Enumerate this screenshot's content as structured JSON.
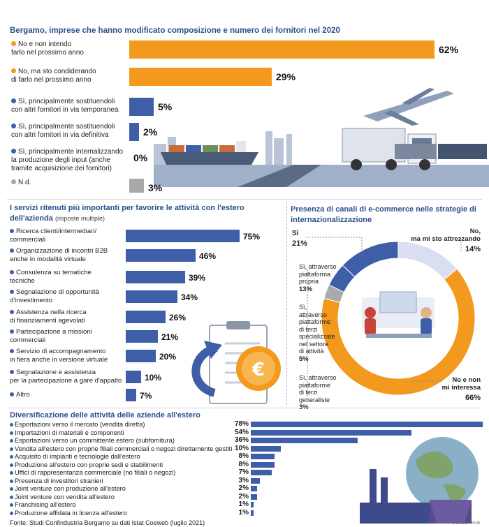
{
  "colors": {
    "orange": "#f39a1e",
    "blue": "#3f5ea8",
    "grey": "#a9a9a9",
    "title_blue": "#2b4f8f",
    "pale": "#d9dff0"
  },
  "chart_data": [
    {
      "type": "bar",
      "title": "Bergamo, imprese che hanno modificato composizione e numero dei fornitori nel 2020",
      "categories": [
        "No e non intendo farlo nel prossimo anno",
        "No, ma sto condiderando di farlo nel prossimo anno",
        "Sì, principalmente sostituendoli con altri fornitori in via temporanea",
        "Sì, principalmente sostituendoli con altri fornitori in via definitiva",
        "Sì, principalmente internalizzando la produzione degli input (anche tramite acquisizione dei fornitori)",
        "N.d."
      ],
      "label_lines": [
        [
          "No e non intendo",
          "farlo nel prossimo anno"
        ],
        [
          "No, ma sto condiderando",
          "di farlo nel prossimo anno"
        ],
        [
          "Sì, principalmente sostituendoli",
          "con altri fornitori in via temporanea"
        ],
        [
          "Sì, principalmente sostituendoli",
          "con altri fornitori in via definitiva"
        ],
        [
          "Sì, principalmente internalizzando",
          "la produzione degli input (anche",
          "tramite acquisizione dei fornitori)"
        ],
        [
          "N.d."
        ]
      ],
      "dot_colors": [
        "#f39a1e",
        "#f39a1e",
        "#3f5ea8",
        "#3f5ea8",
        "#3f5ea8",
        "#a9a9a9"
      ],
      "values": [
        62,
        29,
        5,
        2,
        0,
        3
      ],
      "value_labels": [
        "62%",
        "29%",
        "5%",
        "2%",
        "0%",
        "3%"
      ],
      "xlim": [
        0,
        62
      ]
    },
    {
      "type": "bar",
      "title": "I servizi ritenuti più importanti per favorire le attività con l'estero dell'azienda",
      "subtitle": "(risposte multiple)",
      "label_lines": [
        [
          "Ricerca clienti/intermediari/",
          "commerciali"
        ],
        [
          "Organizzazione di incontri B2B",
          "anche in modalità virtuale"
        ],
        [
          "Consulenza su tematiche",
          "tecniche"
        ],
        [
          "Segnalazione di opportunità",
          "d'investimento"
        ],
        [
          "Assistenza nella ricerca",
          "di finanziamenti agevolati"
        ],
        [
          "Partecipazione a missioni",
          "commerciali"
        ],
        [
          "Servizio di accompagnamento",
          "in fiera anche in versione virtuale"
        ],
        [
          "Segnalazione e assistenza",
          "per la partecipazione a gare d'appalto"
        ],
        [
          "Altro"
        ]
      ],
      "values": [
        75,
        46,
        39,
        34,
        26,
        21,
        20,
        10,
        7
      ],
      "value_labels": [
        "75%",
        "46%",
        "39%",
        "34%",
        "26%",
        "21%",
        "20%",
        "10%",
        "7%"
      ],
      "xlim": [
        0,
        75
      ]
    },
    {
      "type": "pie",
      "title": "Presenza di canali di e-commerce nelle strategie di internazionalizzazione",
      "slices": [
        {
          "label": "No e non mi interessa",
          "value": 66,
          "color": "#f39a1e"
        },
        {
          "label": "Sì, attraverso piattaforme di terzi generaliste",
          "value": 3,
          "color": "#a9a9a9"
        },
        {
          "label": "Sì, attraverso piattaforme di terzi specializzate nel settore di attività",
          "value": 5,
          "color": "#3f5ea8"
        },
        {
          "label": "Sì, attraverso piattaforma propria",
          "value": 13,
          "color": "#3f5ea8"
        },
        {
          "label": "No, ma mi sto attrezzando",
          "value": 14,
          "color": "#d9dff0"
        }
      ],
      "annotations": {
        "si": {
          "label": "Sì",
          "value": "21%"
        },
        "no_attrezzando": {
          "lines": [
            "No,",
            "ma mi sto attrezzando"
          ],
          "value": "14%"
        },
        "propria": {
          "lines": [
            "Sì, attraverso",
            "piattaforma",
            "propria"
          ],
          "value": "13%"
        },
        "specializzate": {
          "lines": [
            "Sì,",
            "attraverso",
            "piattaforme",
            "di terzi",
            "specializzate",
            "nel settore",
            "di attività"
          ],
          "value": "5%"
        },
        "generaliste": {
          "lines": [
            "Sì, attraverso",
            "piattaforme",
            "di terzi",
            "generaliste"
          ],
          "value": "3%"
        },
        "no_interessa": {
          "lines": [
            "No e non",
            "mi interessa"
          ],
          "value": "66%"
        }
      }
    },
    {
      "type": "bar",
      "title": "Diversificazione delle attività delle aziende all'estero",
      "categories": [
        "Esportazioni verso il mercato (vendita diretta)",
        "Importazioni di materiali e componenti",
        "Esportazioni verso un committente estero (subfornitura)",
        "Vendita all'estero con proprie filiali commerciali o negozi direttamente gestiti",
        "Acquisito di impianti e tecnologie dall'estero",
        "Produzione all'estero con proprie sedi e stabilimenti",
        "Uffici di rappresentanza commerciale (no filiali o negozi)",
        "Presenza di investitori stranieri",
        "Joint venture con produzione all'estero",
        "Joint venture con vendita all'estero",
        "Franchising all'estero",
        "Produzione affidata in licenza all'estero"
      ],
      "values": [
        78,
        54,
        36,
        10,
        8,
        8,
        7,
        3,
        2,
        2,
        1,
        1
      ],
      "value_labels": [
        "78%",
        "54%",
        "36%",
        "10%",
        "8%",
        "8%",
        "7%",
        "3%",
        "2%",
        "2%",
        "1%",
        "1%"
      ],
      "xlim": [
        0,
        78
      ]
    }
  ],
  "footer": {
    "source": "Fonte: Studi Confindustria Bergamo su dati Istat Coeweb (luglio 2021)",
    "credit": "L'ESSO - HUB"
  }
}
